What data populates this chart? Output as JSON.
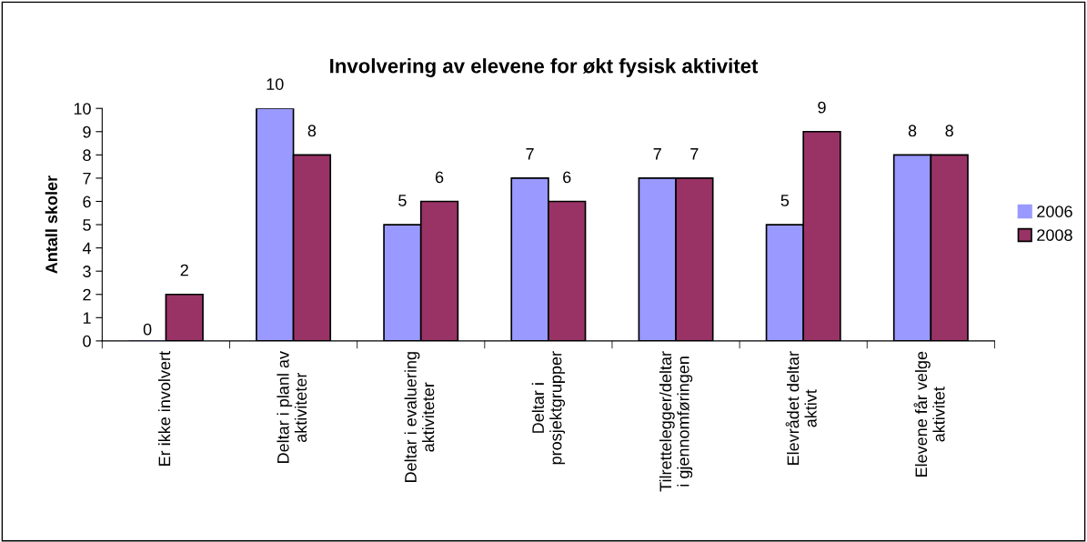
{
  "chart_data": {
    "type": "bar",
    "title": "Involvering av elevene for økt fysisk aktivitet",
    "ylabel": "Antall skoler",
    "categories": [
      "Er ikke involvert",
      "Deltar i planl av\naktiviteter",
      "Deltar i evaluering\naktiviteter",
      "Deltar i\nprosjektgrupper",
      "Tilrettelegger/deltar\ni gjennomføringen",
      "Elevrådet deltar\naktivt",
      "Elevene får velge\naktivitet"
    ],
    "series": [
      {
        "name": "2006",
        "color": "#9999ff",
        "values": [
          0,
          10,
          5,
          7,
          7,
          5,
          8
        ]
      },
      {
        "name": "2008",
        "color": "#993366",
        "values": [
          2,
          8,
          6,
          6,
          7,
          9,
          8
        ]
      }
    ],
    "ylim": [
      0,
      10
    ],
    "yticks": [
      0,
      1,
      2,
      3,
      4,
      5,
      6,
      7,
      8,
      9,
      10
    ],
    "data_labels": true,
    "grid": false,
    "legend": "right"
  }
}
